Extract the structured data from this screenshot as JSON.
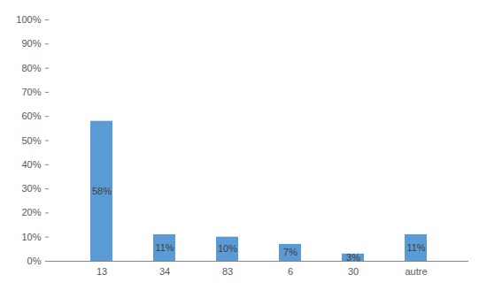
{
  "chart_data": {
    "type": "bar",
    "categories": [
      "13",
      "34",
      "83",
      "6",
      "30",
      "autre"
    ],
    "values": [
      58,
      11,
      10,
      7,
      3,
      11
    ],
    "value_labels": [
      "58%",
      "11%",
      "10%",
      "7%",
      "3%",
      "11%"
    ],
    "data_labels": true,
    "color": "#5b9bd5",
    "grid": false,
    "ylim": [
      0,
      100
    ],
    "yticks": [
      {
        "value": 0,
        "label": "0%"
      },
      {
        "value": 10,
        "label": "10%"
      },
      {
        "value": 20,
        "label": "20%"
      },
      {
        "value": 30,
        "label": "30%"
      },
      {
        "value": 40,
        "label": "40%"
      },
      {
        "value": 50,
        "label": "50%"
      },
      {
        "value": 60,
        "label": "60%"
      },
      {
        "value": 70,
        "label": "70%"
      },
      {
        "value": 80,
        "label": "80%"
      },
      {
        "value": 90,
        "label": "90%"
      },
      {
        "value": 100,
        "label": "100%"
      }
    ]
  }
}
